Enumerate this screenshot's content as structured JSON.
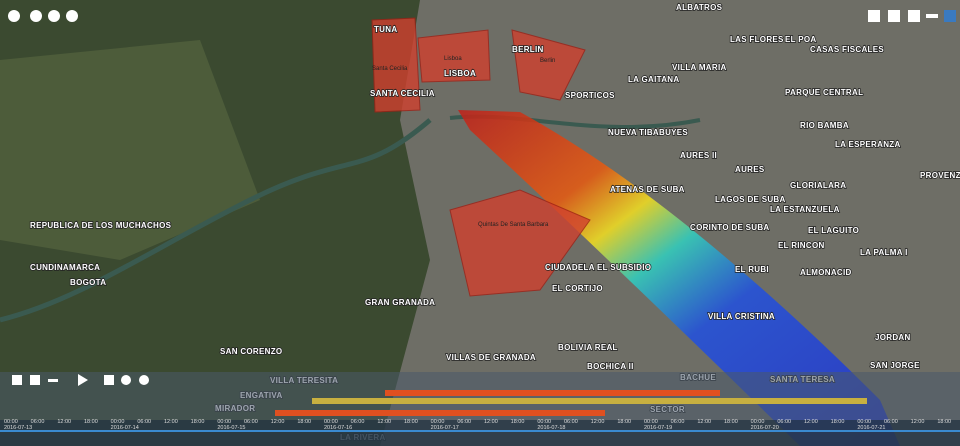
{
  "map": {
    "labels": [
      "TUNA",
      "SANTA CECILIA",
      "LISBOA",
      "BERLIN",
      "Santa Cecilia",
      "Lisboa",
      "Berlin",
      "VILLA MARIA",
      "LA GAITANA",
      "SPORTICOS",
      "LAS FLORES",
      "EL POA",
      "ALBATROS",
      "CASAS FISCALES",
      "PARQUE CENTRAL",
      "RIO BAMBA",
      "LA ESPERANZA",
      "NUEVA TIBABUYES",
      "AURES II",
      "AURES",
      "GLORIALARA",
      "ATENAS DE SUBA",
      "LAGOS DE SUBA",
      "LA ESTANZUELA",
      "CORINTO DE SUBA",
      "EL LAGUITO",
      "EL RINCON",
      "LA PALMA I",
      "EL RUBI",
      "ALMONACID",
      "PROVENZA",
      "Quintas De Santa Barbara",
      "CIUDADELA EL SUBSIDIO",
      "EL CORTIJO",
      "GRAN GRANADA",
      "REPUBLICA DE LOS MUCHACHOS",
      "CUNDINAMARCA",
      "BOGOTA",
      "VILLA CRISTINA",
      "JORDAN",
      "SAN JORGE",
      "SAN CORENZO",
      "VILLAS DE GRANADA",
      "BOLIVIA REAL",
      "BOCHICA II",
      "BACHUE",
      "SANTA TERESA",
      "VILLA TERESITA",
      "ENGATIVA",
      "MIRADOR",
      "SECTOR",
      "LA RIVERA"
    ]
  },
  "timeline": {
    "dates": [
      "2016-07-13",
      "2016-07-14",
      "2016-07-15",
      "2016-07-16",
      "2016-07-17",
      "2016-07-18",
      "2016-07-19",
      "2016-07-20",
      "2016-07-21"
    ],
    "hours": [
      "00:00",
      "06:00",
      "12:00",
      "18:00"
    ]
  }
}
